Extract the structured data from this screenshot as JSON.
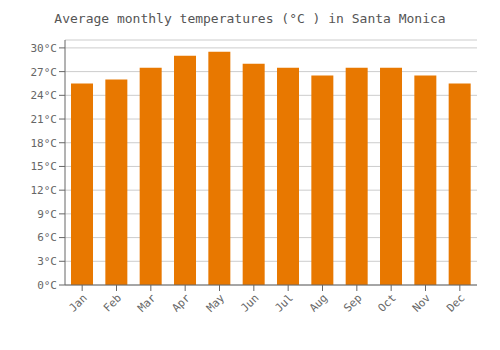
{
  "chart_data": {
    "type": "bar",
    "title": "Average monthly temperatures (°C ) in Santa Monica",
    "categories": [
      "Jan",
      "Feb",
      "Mar",
      "Apr",
      "May",
      "Jun",
      "Jul",
      "Aug",
      "Sep",
      "Oct",
      "Nov",
      "Dec"
    ],
    "values": [
      25.5,
      26.0,
      27.5,
      29.0,
      29.5,
      28.0,
      27.5,
      26.5,
      27.5,
      27.5,
      26.5,
      25.5
    ],
    "color": "#E87800",
    "ylim": [
      0,
      31
    ],
    "yticks": [
      {
        "value": 0,
        "label": "0°C"
      },
      {
        "value": 3,
        "label": "3°C"
      },
      {
        "value": 6,
        "label": "6°C"
      },
      {
        "value": 9,
        "label": "9°C"
      },
      {
        "value": 12,
        "label": "12°C"
      },
      {
        "value": 15,
        "label": "15°C"
      },
      {
        "value": 18,
        "label": "18°C"
      },
      {
        "value": 21,
        "label": "21°C"
      },
      {
        "value": 24,
        "label": "24°C"
      },
      {
        "value": 27,
        "label": "27°C"
      },
      {
        "value": 30,
        "label": "30°C"
      }
    ],
    "grid": true
  }
}
